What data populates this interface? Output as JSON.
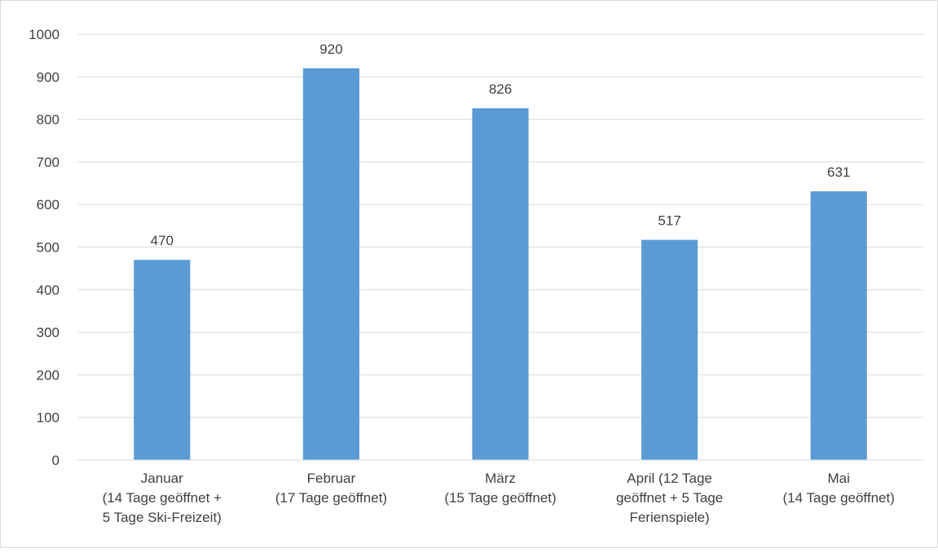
{
  "chart_data": {
    "type": "bar",
    "title": "",
    "xlabel": "",
    "ylabel": "",
    "ylim": [
      0,
      1000
    ],
    "yticks": [
      0,
      100,
      200,
      300,
      400,
      500,
      600,
      700,
      800,
      900,
      1000
    ],
    "grid": true,
    "legend": "none",
    "bar_color": "#5b9bd5",
    "grid_color": "#d9d9d9",
    "categories": [
      [
        "Januar",
        "(14 Tage geöffnet +",
        "5 Tage Ski-Freizeit)"
      ],
      [
        "Februar",
        "(17 Tage geöffnet)"
      ],
      [
        "März",
        "(15 Tage geöffnet)"
      ],
      [
        "April (12 Tage",
        "geöffnet + 5 Tage",
        "Ferienspiele)"
      ],
      [
        "Mai",
        "(14 Tage geöffnet)"
      ]
    ],
    "values": [
      470,
      920,
      826,
      517,
      631
    ]
  }
}
